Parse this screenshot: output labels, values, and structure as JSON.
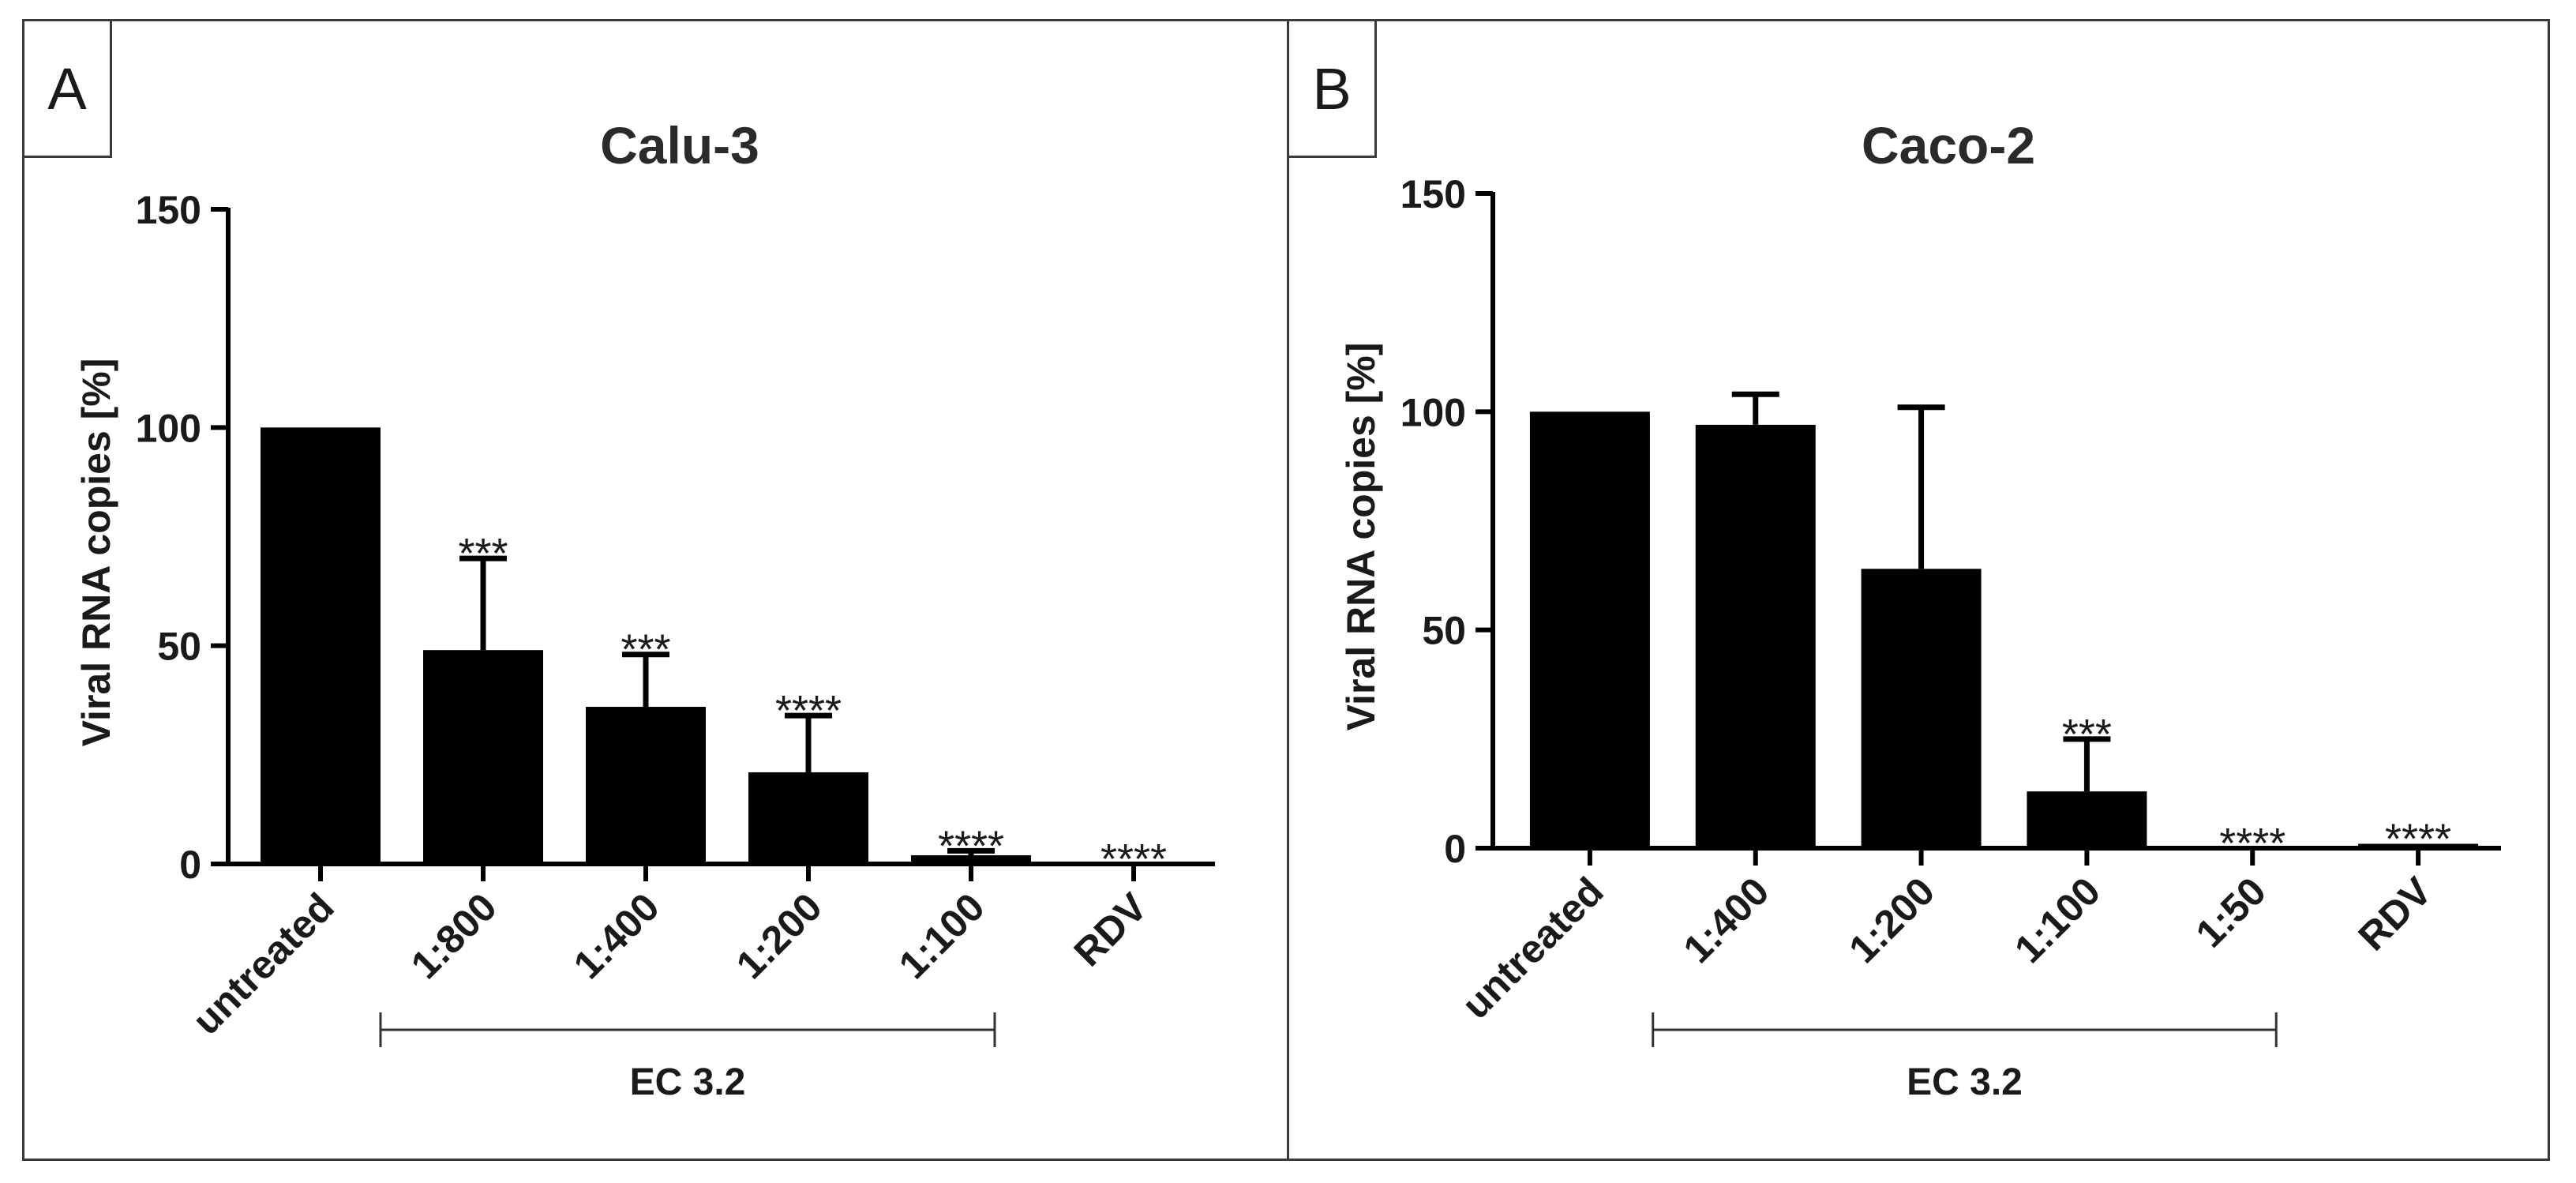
{
  "chart_data": [
    {
      "type": "bar",
      "panel": "A",
      "title": "Calu-3",
      "ylabel": "Viral RNA copies [%]",
      "xlabel": "",
      "ylim": [
        0,
        150
      ],
      "yticks": [
        0,
        50,
        100,
        150
      ],
      "categories": [
        "untreated",
        "1:800",
        "1:400",
        "1:200",
        "1:100",
        "RDV"
      ],
      "values": [
        100,
        49,
        36,
        21,
        2,
        0
      ],
      "errors": [
        0,
        21,
        12,
        13,
        1,
        0
      ],
      "significance": [
        "",
        "***",
        "***",
        "****",
        "****",
        "****"
      ],
      "group": {
        "label": "EC 3.2",
        "from": "1:800",
        "to": "1:100"
      }
    },
    {
      "type": "bar",
      "panel": "B",
      "title": "Caco-2",
      "ylabel": "Viral RNA copies [%]",
      "xlabel": "",
      "ylim": [
        0,
        150
      ],
      "yticks": [
        0,
        50,
        100,
        150
      ],
      "categories": [
        "untreated",
        "1:400",
        "1:200",
        "1:100",
        "1:50",
        "RDV"
      ],
      "values": [
        100,
        97,
        64,
        13,
        0,
        1
      ],
      "errors": [
        0,
        7,
        37,
        12,
        0,
        0
      ],
      "significance": [
        "",
        "",
        "",
        "***",
        "****",
        "****"
      ],
      "group": {
        "label": "EC 3.2",
        "from": "1:400",
        "to": "1:50"
      }
    }
  ]
}
